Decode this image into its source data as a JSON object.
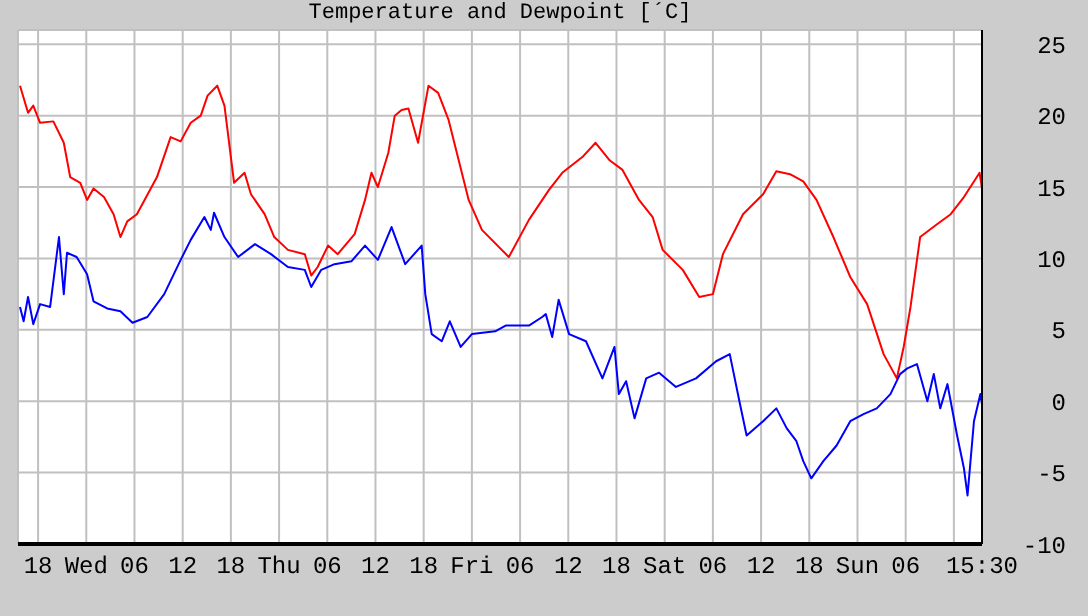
{
  "chart_data": {
    "type": "line",
    "title": "Temperature and Dewpoint [´C]",
    "xlim": [
      "--01-02T15:30",
      "--01-07T15:30"
    ],
    "xticks": [
      {
        "value": "--01-02T18:00",
        "label": "18"
      },
      {
        "value": "--01-03T00:00",
        "label": "Wed"
      },
      {
        "value": "--01-03T06:00",
        "label": "06"
      },
      {
        "value": "--01-03T12:00",
        "label": "12"
      },
      {
        "value": "--01-03T18:00",
        "label": "18"
      },
      {
        "value": "--01-04T00:00",
        "label": "Thu"
      },
      {
        "value": "--01-04T06:00",
        "label": "06"
      },
      {
        "value": "--01-04T12:00",
        "label": "12"
      },
      {
        "value": "--01-04T18:00",
        "label": "18"
      },
      {
        "value": "--01-05T00:00",
        "label": "Fri"
      },
      {
        "value": "--01-05T06:00",
        "label": "06"
      },
      {
        "value": "--01-05T12:00",
        "label": "12"
      },
      {
        "value": "--01-05T18:00",
        "label": "18"
      },
      {
        "value": "--01-06T00:00",
        "label": "Sat"
      },
      {
        "value": "--01-06T06:00",
        "label": "06"
      },
      {
        "value": "--01-06T12:00",
        "label": "12"
      },
      {
        "value": "--01-06T18:00",
        "label": "18"
      },
      {
        "value": "--01-07T00:00",
        "label": "Sun"
      },
      {
        "value": "--01-07T06:00",
        "label": "06"
      },
      {
        "value": "--01-07T12:00",
        "label": null
      },
      {
        "value": "--01-07T15:30",
        "label": "15:30"
      }
    ],
    "ylim": [
      -10,
      26
    ],
    "yticks": [
      -10,
      -5,
      0,
      5,
      10,
      15,
      20,
      25
    ],
    "grid": true,
    "series": [
      {
        "color": "#ff0000",
        "x": [
          "--01-02T15:45",
          "--01-02T16:45",
          "--01-02T17:24",
          "--01-02T18:15",
          "--01-02T19:54",
          "--01-02T21:12",
          "--01-02T22:00",
          "--01-02T23:15",
          "--01-03T00:06",
          "--01-03T00:54",
          "--01-03T02:12",
          "--01-03T03:24",
          "--01-03T04:15",
          "--01-03T05:06",
          "--01-03T06:18",
          "--01-03T08:48",
          "--01-03T10:30",
          "--01-03T11:45",
          "--01-03T13:00",
          "--01-03T14:15",
          "--01-03T15:06",
          "--01-03T16:18",
          "--01-03T17:12",
          "--01-03T18:24",
          "--01-03T19:42",
          "--01-03T20:30",
          "--01-03T22:12",
          "--01-03T23:24",
          "--01-04T01:06",
          "--01-04T03:12",
          "--01-04T04:00",
          "--01-04T04:48",
          "--01-04T06:06",
          "--01-04T07:18",
          "--01-04T09:24",
          "--01-04T10:42",
          "--01-04T11:30",
          "--01-04T12:18",
          "--01-04T13:36",
          "--01-04T14:24",
          "--01-04T15:15",
          "--01-04T16:06",
          "--01-04T17:18",
          "--01-04T18:36",
          "--01-04T19:48",
          "--01-04T21:06",
          "--01-04T23:36",
          "--01-05T01:15",
          "--01-05T04:36",
          "--01-05T07:06",
          "--01-05T09:36",
          "--01-05T11:15",
          "--01-05T13:45",
          "--01-05T15:24",
          "--01-05T17:06",
          "--01-05T18:45",
          "--01-05T20:48",
          "--01-05T22:30",
          "--01-05T23:45",
          "--01-06T02:15",
          "--01-06T04:18",
          "--01-06T06:00",
          "--01-06T07:15",
          "--01-06T09:45",
          "--01-06T12:15",
          "--01-06T13:54",
          "--01-06T15:36",
          "--01-06T17:15",
          "--01-06T18:54",
          "--01-06T21:00",
          "--01-06T23:06",
          "--01-07T01:12",
          "--01-07T03:15",
          "--01-07T04:54",
          "--01-07T05:45",
          "--01-07T06:36",
          "--01-07T07:48",
          "--01-07T09:54",
          "--01-07T11:36",
          "--01-07T13:15",
          "--01-07T15:12",
          "--01-07T15:30"
        ],
        "values": [
          22.1,
          20.2,
          20.7,
          19.5,
          19.6,
          18.1,
          15.7,
          15.3,
          14.1,
          14.9,
          14.3,
          13.1,
          11.5,
          12.6,
          13.1,
          15.7,
          18.5,
          18.2,
          19.5,
          20,
          21.4,
          22.1,
          20.7,
          15.3,
          16,
          14.5,
          13.1,
          11.5,
          10.6,
          10.3,
          8.8,
          9.4,
          10.9,
          10.3,
          11.7,
          14.1,
          16,
          15,
          17.4,
          20,
          20.4,
          20.5,
          18.1,
          22.1,
          21.6,
          19.7,
          14.1,
          12,
          10.1,
          12.7,
          14.8,
          16,
          17.1,
          18.1,
          16.9,
          16.2,
          14.1,
          12.9,
          10.6,
          9.2,
          7.3,
          7.5,
          10.3,
          13.1,
          14.5,
          16.1,
          15.9,
          15.4,
          14.1,
          11.5,
          8.7,
          6.8,
          3.3,
          1.6,
          3.8,
          6.6,
          11.5,
          12.4,
          13.1,
          14.3,
          16,
          14.9
        ]
      },
      {
        "color": "#0000ff",
        "x": [
          "--01-02T15:45",
          "--01-02T16:12",
          "--01-02T16:45",
          "--01-02T17:24",
          "--01-02T18:15",
          "--01-02T19:30",
          "--01-02T20:36",
          "--01-02T21:12",
          "--01-02T21:36",
          "--01-02T22:48",
          "--01-03T00:06",
          "--01-03T00:54",
          "--01-03T02:36",
          "--01-03T04:15",
          "--01-03T05:45",
          "--01-03T07:36",
          "--01-03T09:42",
          "--01-03T11:45",
          "--01-03T13:00",
          "--01-03T14:42",
          "--01-03T15:30",
          "--01-03T15:54",
          "--01-03T17:12",
          "--01-03T18:54",
          "--01-03T21:00",
          "--01-03T23:00",
          "--01-04T01:06",
          "--01-04T03:12",
          "--01-04T04:00",
          "--01-04T05:15",
          "--01-04T06:54",
          "--01-04T09:00",
          "--01-04T10:42",
          "--01-04T12:18",
          "--01-04T14:00",
          "--01-04T15:42",
          "--01-04T17:45",
          "--01-04T18:12",
          "--01-04T19:00",
          "--01-04T20:15",
          "--01-04T21:15",
          "--01-04T22:36",
          "--01-05T00:00",
          "--01-05T02:54",
          "--01-05T04:12",
          "--01-05T07:06",
          "--01-05T08:45",
          "--01-05T09:12",
          "--01-05T10:00",
          "--01-05T10:48",
          "--01-05T12:06",
          "--01-05T14:12",
          "--01-05T16:15",
          "--01-05T17:45",
          "--01-05T18:18",
          "--01-05T19:12",
          "--01-05T20:15",
          "--01-05T21:42",
          "--01-05T23:18",
          "--01-06T01:24",
          "--01-06T03:54",
          "--01-06T06:24",
          "--01-06T08:06",
          "--01-06T09:18",
          "--01-06T10:12",
          "--01-06T12:15",
          "--01-06T13:54",
          "--01-06T15:12",
          "--01-06T16:24",
          "--01-06T17:15",
          "--01-06T18:15",
          "--01-06T19:45",
          "--01-06T21:24",
          "--01-06T23:06",
          "--01-07T00:45",
          "--01-07T02:24",
          "--01-07T04:06",
          "--01-07T05:18",
          "--01-07T06:12",
          "--01-07T07:24",
          "--01-07T08:42",
          "--01-07T09:30",
          "--01-07T10:18",
          "--01-07T11:12",
          "--01-07T12:24",
          "--01-07T13:15",
          "--01-07T13:42",
          "--01-07T14:30",
          "--01-07T15:18",
          "--01-07T15:30"
        ],
        "values": [
          6.6,
          5.6,
          7.3,
          5.4,
          6.8,
          6.6,
          11.5,
          7.5,
          10.4,
          10.1,
          8.9,
          7,
          6.5,
          6.3,
          5.5,
          5.9,
          7.5,
          9.9,
          11.3,
          12.9,
          12,
          13.2,
          11.5,
          10.1,
          11,
          10.3,
          9.4,
          9.2,
          8,
          9.2,
          9.6,
          9.8,
          10.9,
          9.9,
          12.2,
          9.6,
          10.9,
          7.5,
          4.7,
          4.2,
          5.6,
          3.8,
          4.7,
          4.9,
          5.3,
          5.3,
          5.9,
          6.1,
          4.5,
          7.1,
          4.7,
          4.2,
          1.6,
          3.8,
          0.5,
          1.4,
          -1.2,
          1.6,
          2,
          1,
          1.6,
          2.8,
          3.3,
          0,
          -2.4,
          -1.4,
          -0.5,
          -1.9,
          -2.8,
          -4.2,
          -5.4,
          -4.2,
          -3.1,
          -1.4,
          -0.9,
          -0.5,
          0.5,
          1.9,
          2.3,
          2.6,
          0,
          1.9,
          -0.5,
          1.2,
          -2.4,
          -4.7,
          -6.6,
          -1.4,
          0.5,
          -0.2
        ]
      }
    ]
  }
}
